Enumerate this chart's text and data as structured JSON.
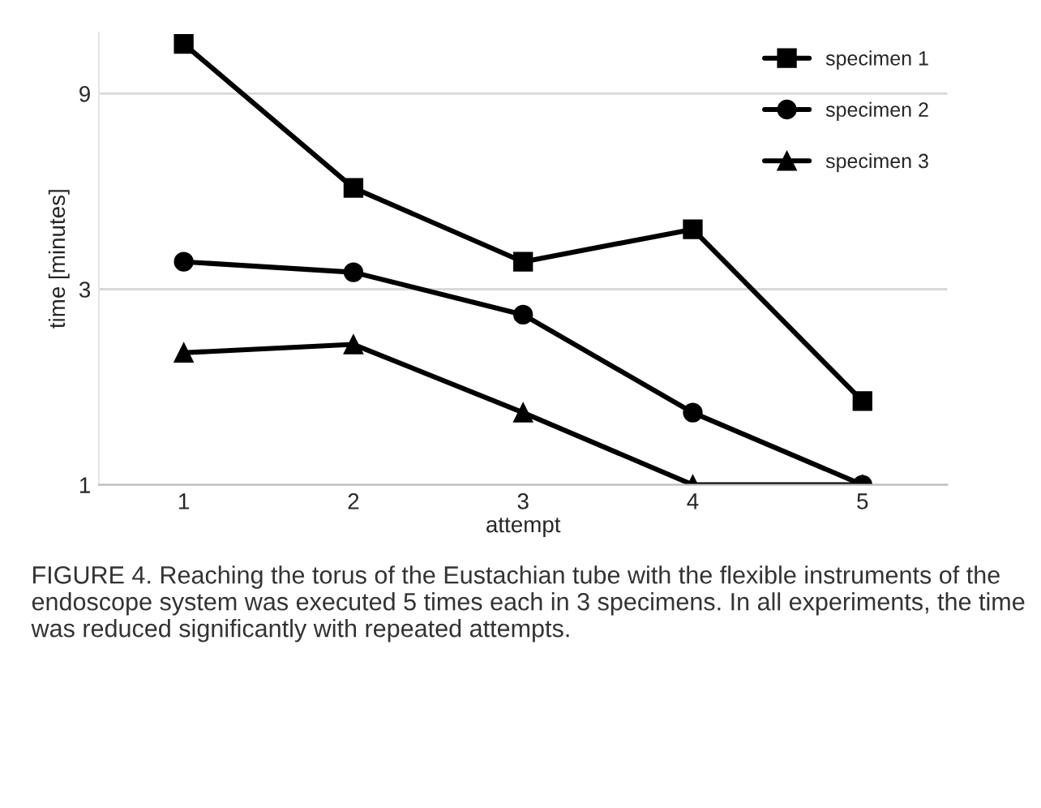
{
  "chart_data": {
    "type": "line",
    "xlabel": "attempt",
    "ylabel": "time [minutes]",
    "categories": [
      "1",
      "2",
      "3",
      "4",
      "5"
    ],
    "series": [
      {
        "name": "specimen 1",
        "color": "#000000",
        "marker": "square",
        "values": [
          11.9,
          5.3,
          3.5,
          4.2,
          1.6
        ]
      },
      {
        "name": "specimen 2",
        "color": "#000000",
        "marker": "circle",
        "values": [
          3.5,
          3.3,
          2.6,
          1.5,
          1
        ]
      },
      {
        "name": "specimen 3",
        "color": "#000000",
        "marker": "triangle",
        "values": [
          2.1,
          2.2,
          1.5,
          1,
          1
        ]
      }
    ],
    "log": "y",
    "ylim": [
      1,
      12.7
    ],
    "yticks": [
      1,
      3,
      9
    ],
    "grid": "y",
    "legend": "top right",
    "line_style": "solid",
    "annotations": [
      "FIGURE 4. Reaching the torus of the Eustachian tube with the flexible instruments of the endoscope system was executed 5 times each in 3 specimens. In all experiments, the time was reduced significantly with repeated attempts."
    ]
  }
}
